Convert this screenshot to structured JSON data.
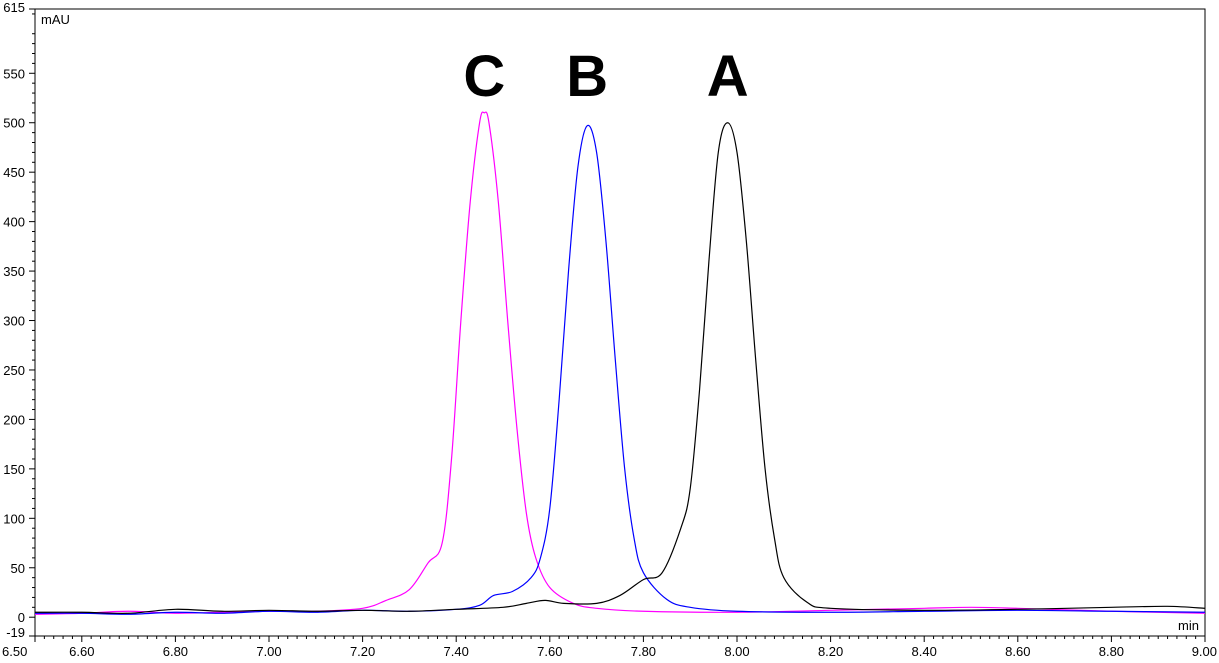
{
  "chart_data": {
    "type": "line",
    "xlabel": "min",
    "ylabel": "mAU",
    "xlim": [
      6.5,
      9.0
    ],
    "ylim": [
      -19,
      615
    ],
    "x_ticks": [
      "6.50",
      "6.60",
      "6.80",
      "7.00",
      "7.20",
      "7.40",
      "7.60",
      "7.80",
      "8.00",
      "8.20",
      "8.40",
      "8.60",
      "8.80",
      "9.00"
    ],
    "y_ticks": [
      "615",
      "550",
      "500",
      "450",
      "400",
      "350",
      "300",
      "250",
      "200",
      "150",
      "100",
      "50",
      "0",
      "-19"
    ],
    "grid": false,
    "legend": "none",
    "peak_labels": [
      {
        "text": "C",
        "x": 7.46,
        "y": 547
      },
      {
        "text": "B",
        "x": 7.68,
        "y": 547
      },
      {
        "text": "A",
        "x": 7.98,
        "y": 547
      }
    ],
    "series": [
      {
        "color": "#ff00ff",
        "points": [
          [
            6.5,
            3
          ],
          [
            6.6,
            4
          ],
          [
            6.7,
            6
          ],
          [
            6.8,
            4
          ],
          [
            6.9,
            5
          ],
          [
            7.0,
            6
          ],
          [
            7.1,
            6
          ],
          [
            7.2,
            9
          ],
          [
            7.25,
            17
          ],
          [
            7.3,
            28
          ],
          [
            7.34,
            55
          ],
          [
            7.37,
            75
          ],
          [
            7.39,
            160
          ],
          [
            7.41,
            300
          ],
          [
            7.43,
            420
          ],
          [
            7.45,
            500
          ],
          [
            7.46,
            510
          ],
          [
            7.47,
            500
          ],
          [
            7.49,
            420
          ],
          [
            7.51,
            300
          ],
          [
            7.53,
            190
          ],
          [
            7.55,
            105
          ],
          [
            7.57,
            60
          ],
          [
            7.6,
            30
          ],
          [
            7.65,
            14
          ],
          [
            7.7,
            9
          ],
          [
            7.8,
            6
          ],
          [
            8.0,
            5
          ],
          [
            8.2,
            7
          ],
          [
            8.4,
            9
          ],
          [
            8.5,
            10
          ],
          [
            8.6,
            9
          ],
          [
            8.8,
            6
          ],
          [
            9.0,
            4
          ]
        ]
      },
      {
        "color": "#0000ff",
        "points": [
          [
            6.5,
            4
          ],
          [
            6.6,
            4
          ],
          [
            6.7,
            3
          ],
          [
            6.8,
            5
          ],
          [
            6.9,
            4
          ],
          [
            7.0,
            6
          ],
          [
            7.1,
            5
          ],
          [
            7.2,
            7
          ],
          [
            7.3,
            6
          ],
          [
            7.4,
            8
          ],
          [
            7.45,
            12
          ],
          [
            7.48,
            22
          ],
          [
            7.52,
            26
          ],
          [
            7.56,
            40
          ],
          [
            7.58,
            60
          ],
          [
            7.6,
            110
          ],
          [
            7.62,
            220
          ],
          [
            7.64,
            350
          ],
          [
            7.66,
            455
          ],
          [
            7.68,
            497
          ],
          [
            7.7,
            470
          ],
          [
            7.72,
            380
          ],
          [
            7.74,
            260
          ],
          [
            7.76,
            150
          ],
          [
            7.78,
            80
          ],
          [
            7.8,
            45
          ],
          [
            7.85,
            18
          ],
          [
            7.9,
            10
          ],
          [
            8.0,
            6
          ],
          [
            8.2,
            5
          ],
          [
            8.4,
            6
          ],
          [
            8.6,
            7
          ],
          [
            8.8,
            6
          ],
          [
            9.0,
            5
          ]
        ]
      },
      {
        "color": "#000000",
        "points": [
          [
            6.5,
            5
          ],
          [
            6.6,
            5
          ],
          [
            6.7,
            4
          ],
          [
            6.8,
            8
          ],
          [
            6.9,
            6
          ],
          [
            7.0,
            7
          ],
          [
            7.1,
            6
          ],
          [
            7.2,
            7
          ],
          [
            7.3,
            6
          ],
          [
            7.4,
            8
          ],
          [
            7.5,
            10
          ],
          [
            7.55,
            14
          ],
          [
            7.59,
            17
          ],
          [
            7.63,
            14
          ],
          [
            7.7,
            14
          ],
          [
            7.75,
            22
          ],
          [
            7.8,
            38
          ],
          [
            7.84,
            45
          ],
          [
            7.88,
            90
          ],
          [
            7.9,
            130
          ],
          [
            7.92,
            230
          ],
          [
            7.94,
            360
          ],
          [
            7.96,
            470
          ],
          [
            7.98,
            500
          ],
          [
            8.0,
            470
          ],
          [
            8.02,
            380
          ],
          [
            8.04,
            260
          ],
          [
            8.06,
            150
          ],
          [
            8.08,
            80
          ],
          [
            8.1,
            40
          ],
          [
            8.15,
            15
          ],
          [
            8.2,
            9
          ],
          [
            8.4,
            7
          ],
          [
            8.6,
            8
          ],
          [
            8.8,
            10
          ],
          [
            8.92,
            11
          ],
          [
            9.0,
            9
          ]
        ]
      }
    ]
  }
}
